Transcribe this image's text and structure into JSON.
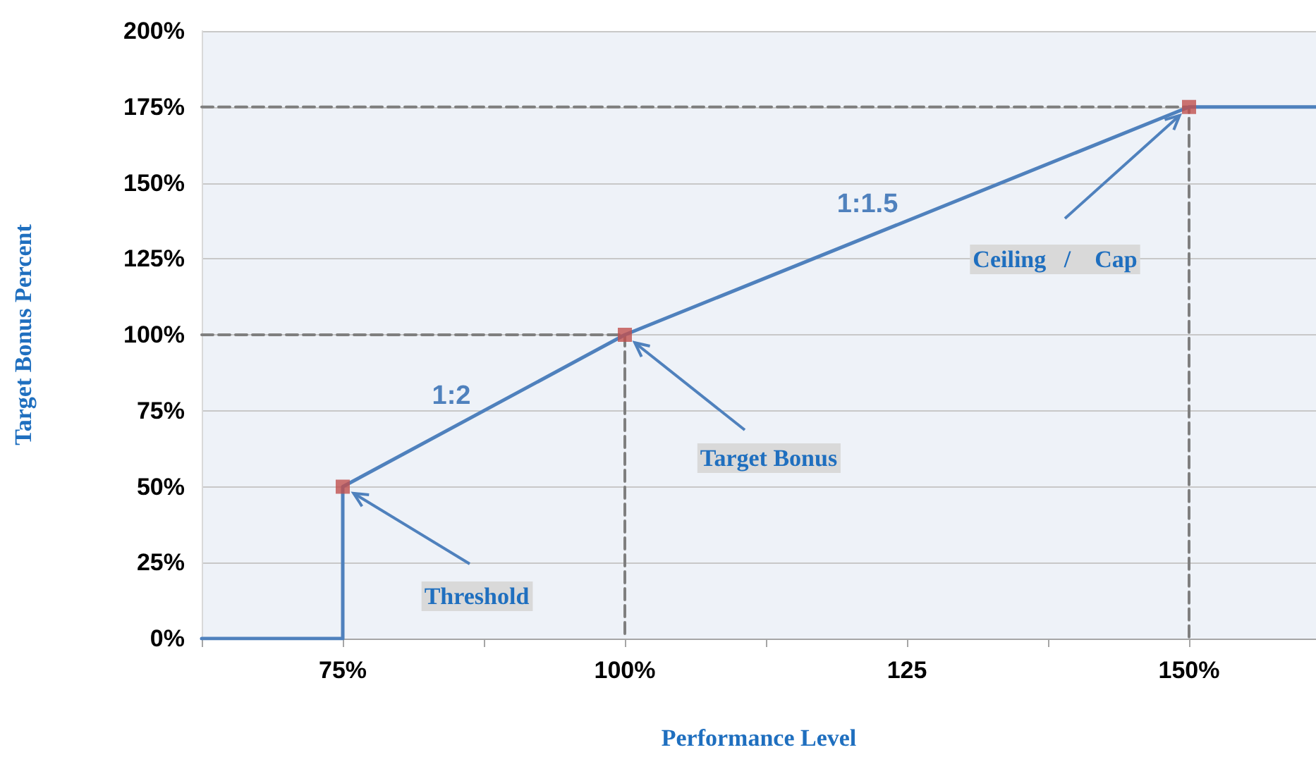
{
  "chart_data": {
    "type": "line",
    "xlabel": "Performance Level",
    "ylabel": "Target Bonus Percent",
    "xlim": [
      62.5,
      161.25
    ],
    "xticks": [
      {
        "value": 62.5,
        "label": null
      },
      {
        "value": 75,
        "label": "75%"
      },
      {
        "value": 87.5,
        "label": null
      },
      {
        "value": 100,
        "label": "100%"
      },
      {
        "value": 112.5,
        "label": null
      },
      {
        "value": 125,
        "label": "125"
      },
      {
        "value": 137.5,
        "label": null
      },
      {
        "value": 150,
        "label": "150%"
      }
    ],
    "ylim": [
      0,
      200
    ],
    "yticks": [
      {
        "value": 0,
        "label": "0%"
      },
      {
        "value": 25,
        "label": "25%"
      },
      {
        "value": 50,
        "label": "50%"
      },
      {
        "value": 75,
        "label": "75%"
      },
      {
        "value": 100,
        "label": "100%"
      },
      {
        "value": 125,
        "label": "125%"
      },
      {
        "value": 150,
        "label": "150%"
      },
      {
        "value": 175,
        "label": "175%"
      },
      {
        "value": 200,
        "label": "200%"
      }
    ],
    "grid": "y",
    "series": [
      {
        "color": "#7f7f7f",
        "line_style": "dashed",
        "marker": "none",
        "x": [
          62.5,
          100,
          100
        ],
        "values": [
          100,
          100,
          0
        ]
      },
      {
        "color": "#7f7f7f",
        "line_style": "dashed",
        "marker": "none",
        "x": [
          62.5,
          150,
          150
        ],
        "values": [
          175,
          175,
          0
        ]
      },
      {
        "color": "#4f81bd",
        "line_style": "solid",
        "marker": "none",
        "x": [
          62.5,
          75,
          75,
          100,
          150,
          161.25
        ],
        "values": [
          0,
          0,
          50,
          100,
          175,
          175
        ]
      },
      {
        "type": "scatter",
        "color": "#c0504d",
        "marker": "square",
        "x": [
          75,
          100,
          150
        ],
        "values": [
          50,
          100,
          175
        ]
      }
    ],
    "annotations": [
      "1:2",
      "1:1.5",
      {
        "text": "Threshold",
        "x": 75,
        "y": 50
      },
      {
        "text": "Target Bonus",
        "x": 100,
        "y": 100
      },
      {
        "text": "Ceiling   /    Cap",
        "x": 150,
        "y": 175
      }
    ]
  }
}
